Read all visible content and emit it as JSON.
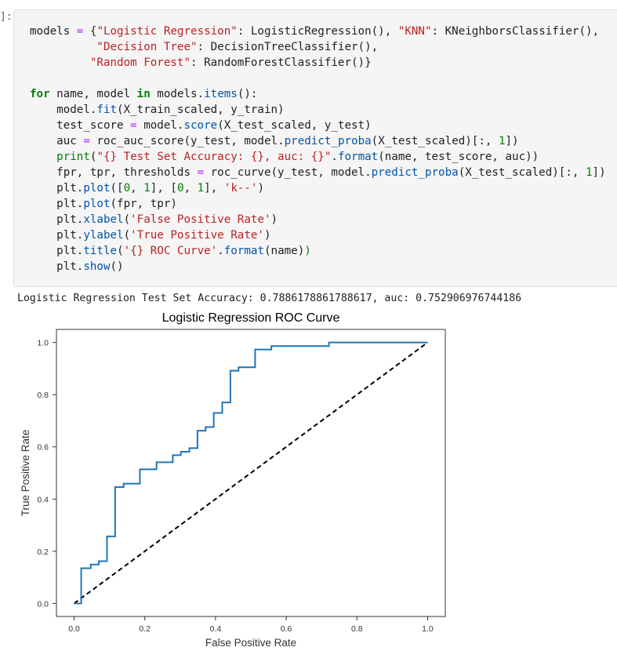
{
  "cell": {
    "prompt": "]:",
    "code_lines": [
      [
        [
          "models ",
          ""
        ],
        [
          "=",
          "op"
        ],
        [
          " {",
          ""
        ],
        [
          "\"Logistic Regression\"",
          "str"
        ],
        [
          ": LogisticRegression(), ",
          ""
        ],
        [
          "\"KNN\"",
          "str"
        ],
        [
          ": KNeighborsClassifier(),",
          ""
        ]
      ],
      [
        [
          "          ",
          ""
        ],
        [
          "\"Decision Tree\"",
          "str"
        ],
        [
          ": DecisionTreeClassifier(),",
          ""
        ]
      ],
      [
        [
          "         ",
          ""
        ],
        [
          "\"Random Forest\"",
          "str"
        ],
        [
          ": RandomForestClassifier()}",
          ""
        ]
      ],
      [
        [
          "",
          ""
        ]
      ],
      [
        [
          "for",
          "kw"
        ],
        [
          " name, model ",
          ""
        ],
        [
          "in",
          "kw"
        ],
        [
          " models.",
          ""
        ],
        [
          "items",
          "fn"
        ],
        [
          "():",
          ""
        ]
      ],
      [
        [
          "    model.",
          ""
        ],
        [
          "fit",
          "fn"
        ],
        [
          "(X_train_scaled, y_train)",
          ""
        ]
      ],
      [
        [
          "    test_score ",
          ""
        ],
        [
          "=",
          "op"
        ],
        [
          " model.",
          ""
        ],
        [
          "score",
          "fn"
        ],
        [
          "(X_test_scaled, y_test)",
          ""
        ]
      ],
      [
        [
          "    auc ",
          ""
        ],
        [
          "=",
          "op"
        ],
        [
          " roc_auc_score(y_test, model.",
          ""
        ],
        [
          "predict_proba",
          "fn"
        ],
        [
          "(X_test_scaled)[:, ",
          ""
        ],
        [
          "1",
          "num"
        ],
        [
          "])",
          ""
        ]
      ],
      [
        [
          "    ",
          ""
        ],
        [
          "print",
          "num"
        ],
        [
          "(",
          ""
        ],
        [
          "\"{} Test Set Accuracy: {}, auc: {}\"",
          "str"
        ],
        [
          ".",
          ""
        ],
        [
          "format",
          "fn"
        ],
        [
          "(name, test_score, auc))",
          ""
        ]
      ],
      [
        [
          "    fpr, tpr, thresholds ",
          ""
        ],
        [
          "=",
          "op"
        ],
        [
          " roc_curve(y_test, model.",
          ""
        ],
        [
          "predict_proba",
          "fn"
        ],
        [
          "(X_test_scaled)[:, ",
          ""
        ],
        [
          "1",
          "num"
        ],
        [
          "])",
          ""
        ]
      ],
      [
        [
          "    plt.",
          ""
        ],
        [
          "plot",
          "fn"
        ],
        [
          "([",
          ""
        ],
        [
          "0",
          "num"
        ],
        [
          ", ",
          ""
        ],
        [
          "1",
          "num"
        ],
        [
          "], [",
          ""
        ],
        [
          "0",
          "num"
        ],
        [
          ", ",
          ""
        ],
        [
          "1",
          "num"
        ],
        [
          "], ",
          ""
        ],
        [
          "'k--'",
          "str"
        ],
        [
          ")",
          ""
        ]
      ],
      [
        [
          "    plt.",
          ""
        ],
        [
          "plot",
          "fn"
        ],
        [
          "(fpr, tpr)",
          ""
        ]
      ],
      [
        [
          "    plt.",
          ""
        ],
        [
          "xlabel",
          "fn"
        ],
        [
          "(",
          ""
        ],
        [
          "'False Positive Rate'",
          "str"
        ],
        [
          ")",
          ""
        ]
      ],
      [
        [
          "    plt.",
          ""
        ],
        [
          "ylabel",
          "fn"
        ],
        [
          "(",
          ""
        ],
        [
          "'True Positive Rate'",
          "str"
        ],
        [
          ")",
          ""
        ]
      ],
      [
        [
          "    plt.",
          ""
        ],
        [
          "title",
          "fn"
        ],
        [
          "(",
          ""
        ],
        [
          "'{} ROC Curve'",
          "str"
        ],
        [
          ".",
          ""
        ],
        [
          "format",
          "fn"
        ],
        [
          "(name)",
          ""
        ],
        [
          ")",
          "num"
        ]
      ],
      [
        [
          "    plt.",
          ""
        ],
        [
          "show",
          "fn"
        ],
        [
          "()",
          ""
        ]
      ]
    ]
  },
  "output": {
    "text": "Logistic Regression Test Set Accuracy: 0.7886178861788617, auc: 0.752906976744186"
  },
  "chart_data": {
    "type": "line",
    "title": "Logistic Regression ROC Curve",
    "xlabel": "False Positive Rate",
    "ylabel": "True Positive Rate",
    "xlim": [
      -0.05,
      1.05
    ],
    "ylim": [
      -0.05,
      1.05
    ],
    "xticks": [
      0.0,
      0.2,
      0.4,
      0.6,
      0.8,
      1.0
    ],
    "yticks": [
      0.0,
      0.2,
      0.4,
      0.6,
      0.8,
      1.0
    ],
    "grid": false,
    "colors": {
      "roc": "#1f77b4",
      "diagonal": "#000000"
    },
    "series": [
      {
        "style": "k--",
        "x": [
          0,
          1
        ],
        "y": [
          0,
          1
        ]
      },
      {
        "style": "solid",
        "x": [
          0.0,
          0.02,
          0.02,
          0.047,
          0.047,
          0.07,
          0.07,
          0.093,
          0.093,
          0.116,
          0.116,
          0.14,
          0.14,
          0.186,
          0.186,
          0.233,
          0.233,
          0.279,
          0.279,
          0.302,
          0.302,
          0.326,
          0.326,
          0.349,
          0.349,
          0.372,
          0.372,
          0.395,
          0.395,
          0.419,
          0.419,
          0.442,
          0.442,
          0.465,
          0.465,
          0.512,
          0.512,
          0.558,
          0.558,
          0.721,
          0.721,
          1.0
        ],
        "y": [
          0.0,
          0.0,
          0.135,
          0.135,
          0.149,
          0.149,
          0.162,
          0.162,
          0.257,
          0.257,
          0.446,
          0.446,
          0.459,
          0.459,
          0.514,
          0.514,
          0.541,
          0.541,
          0.568,
          0.568,
          0.581,
          0.581,
          0.595,
          0.595,
          0.662,
          0.662,
          0.676,
          0.676,
          0.73,
          0.73,
          0.77,
          0.77,
          0.892,
          0.892,
          0.905,
          0.905,
          0.973,
          0.973,
          0.986,
          0.986,
          1.0,
          1.0
        ]
      }
    ]
  }
}
